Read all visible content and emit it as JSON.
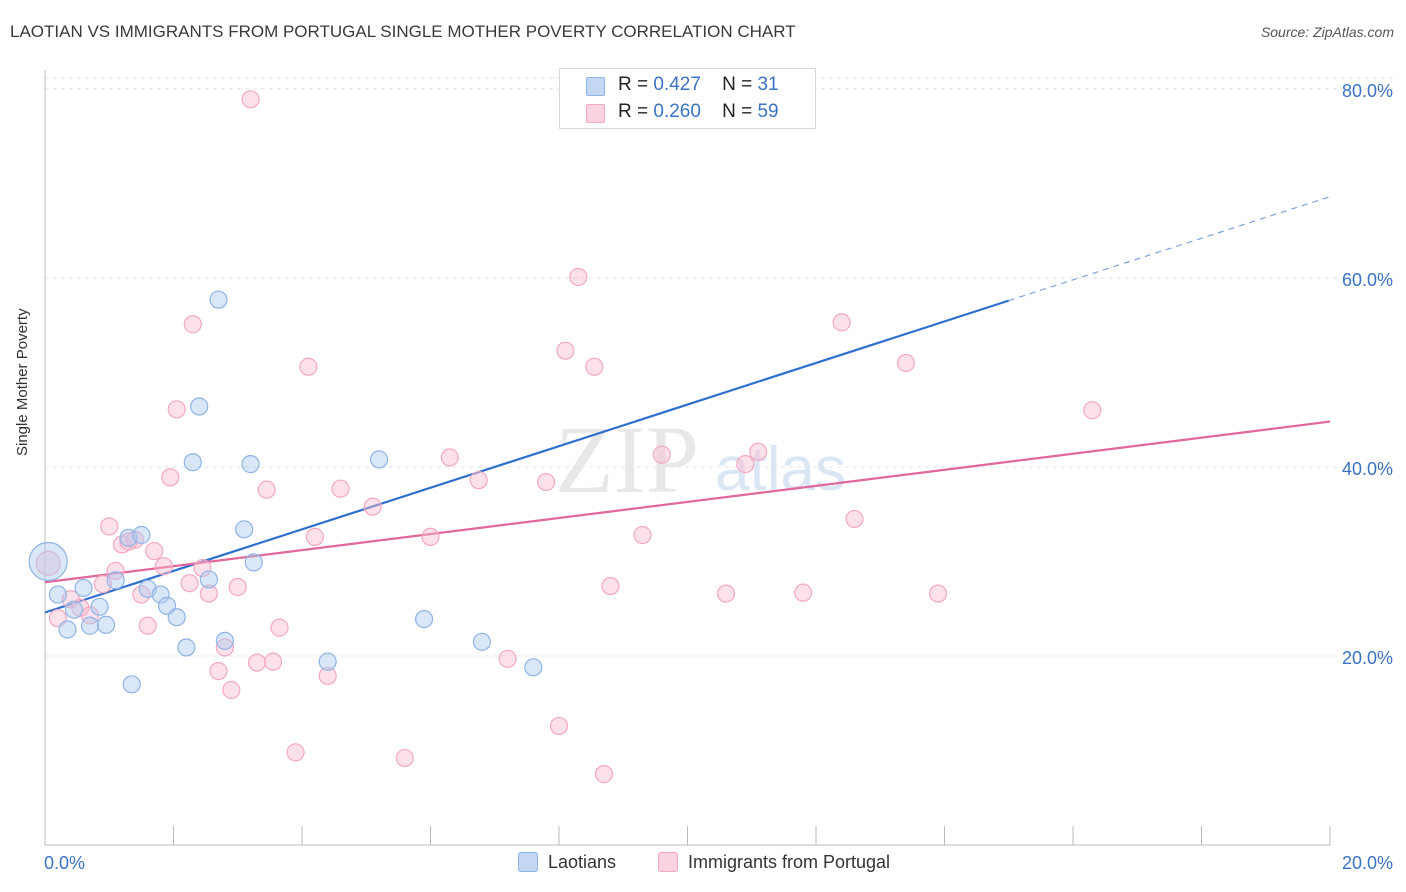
{
  "title": "LAOTIAN VS IMMIGRANTS FROM PORTUGAL SINGLE MOTHER POVERTY CORRELATION CHART",
  "source": "Source: ZipAtlas.com",
  "watermark": {
    "zip": "ZIP",
    "atlas": "atlas"
  },
  "legend_stats": [
    {
      "r_label": "R =",
      "r_value": "0.427",
      "n_label": "N =",
      "n_value": "31"
    },
    {
      "r_label": "R =",
      "r_value": "0.260",
      "n_label": "N =",
      "n_value": "59"
    }
  ],
  "chart_data": {
    "type": "scatter",
    "title": "LAOTIAN VS IMMIGRANTS FROM PORTUGAL SINGLE MOTHER POVERTY CORRELATION CHART",
    "xlabel": "",
    "ylabel": "Single Mother Poverty",
    "xlim": [
      0,
      20
    ],
    "ylim": [
      0,
      82
    ],
    "x_tick_labels": [
      "0.0%",
      "20.0%"
    ],
    "y_ticks": [
      20,
      40,
      60,
      80
    ],
    "y_tick_labels": [
      "20.0%",
      "40.0%",
      "60.0%",
      "80.0%"
    ],
    "grid": true,
    "legend_position": "bottom",
    "series": [
      {
        "name": "Laotians",
        "color": "#8fb4e6",
        "line_color": "#2f6fcf",
        "points": [
          [
            0.05,
            30.0
          ],
          [
            0.2,
            26.5
          ],
          [
            0.35,
            22.8
          ],
          [
            0.45,
            24.9
          ],
          [
            0.6,
            27.2
          ],
          [
            0.7,
            23.2
          ],
          [
            0.85,
            25.2
          ],
          [
            0.95,
            23.3
          ],
          [
            1.1,
            28.0
          ],
          [
            1.3,
            32.5
          ],
          [
            1.5,
            32.8
          ],
          [
            1.6,
            27.1
          ],
          [
            1.8,
            26.5
          ],
          [
            1.9,
            25.3
          ],
          [
            2.05,
            24.1
          ],
          [
            2.2,
            20.9
          ],
          [
            2.3,
            40.5
          ],
          [
            2.4,
            46.4
          ],
          [
            2.55,
            28.1
          ],
          [
            2.7,
            57.7
          ],
          [
            2.8,
            21.6
          ],
          [
            3.1,
            33.4
          ],
          [
            3.2,
            40.3
          ],
          [
            3.25,
            29.9
          ],
          [
            4.4,
            19.4
          ],
          [
            5.2,
            40.8
          ],
          [
            5.9,
            23.9
          ],
          [
            6.8,
            21.5
          ],
          [
            7.6,
            18.8
          ],
          [
            10.5,
            78.0
          ],
          [
            1.35,
            17.0
          ]
        ],
        "trend": {
          "x0": 0,
          "y0": 24.6,
          "x1": 15.0,
          "y1": 57.6,
          "dash_x1": 20.0,
          "dash_y1": 68.6
        }
      },
      {
        "name": "Immigrants from Portugal",
        "color": "#f4a8c2",
        "line_color": "#e0689a",
        "points": [
          [
            0.05,
            29.8
          ],
          [
            0.2,
            24.0
          ],
          [
            0.4,
            26.0
          ],
          [
            0.55,
            25.1
          ],
          [
            0.7,
            24.3
          ],
          [
            0.9,
            27.6
          ],
          [
            1.0,
            33.7
          ],
          [
            1.1,
            29.0
          ],
          [
            1.2,
            31.8
          ],
          [
            1.4,
            32.3
          ],
          [
            1.5,
            26.5
          ],
          [
            1.6,
            23.2
          ],
          [
            1.7,
            31.1
          ],
          [
            1.85,
            29.5
          ],
          [
            1.95,
            38.9
          ],
          [
            2.05,
            46.1
          ],
          [
            2.25,
            27.7
          ],
          [
            2.3,
            55.1
          ],
          [
            2.45,
            29.3
          ],
          [
            2.55,
            26.6
          ],
          [
            2.7,
            18.4
          ],
          [
            2.8,
            20.9
          ],
          [
            2.9,
            16.4
          ],
          [
            3.0,
            27.3
          ],
          [
            3.2,
            78.9
          ],
          [
            3.3,
            19.3
          ],
          [
            3.45,
            37.6
          ],
          [
            3.55,
            19.4
          ],
          [
            3.65,
            23.0
          ],
          [
            3.9,
            9.8
          ],
          [
            4.1,
            50.6
          ],
          [
            4.2,
            32.6
          ],
          [
            4.4,
            17.9
          ],
          [
            4.6,
            37.7
          ],
          [
            5.1,
            35.8
          ],
          [
            5.6,
            9.2
          ],
          [
            6.0,
            32.6
          ],
          [
            6.3,
            41.0
          ],
          [
            6.75,
            38.6
          ],
          [
            7.2,
            19.7
          ],
          [
            7.8,
            38.4
          ],
          [
            8.0,
            12.6
          ],
          [
            8.1,
            52.3
          ],
          [
            8.3,
            60.1
          ],
          [
            8.55,
            50.6
          ],
          [
            8.7,
            7.5
          ],
          [
            8.8,
            27.4
          ],
          [
            9.3,
            32.8
          ],
          [
            9.6,
            41.3
          ],
          [
            10.6,
            26.6
          ],
          [
            10.9,
            40.3
          ],
          [
            11.1,
            41.6
          ],
          [
            11.8,
            26.7
          ],
          [
            12.4,
            55.3
          ],
          [
            12.6,
            34.5
          ],
          [
            13.4,
            51.0
          ],
          [
            13.9,
            26.6
          ],
          [
            16.3,
            46.0
          ],
          [
            1.3,
            32.1
          ]
        ],
        "trend": {
          "x0": 0,
          "y0": 27.8,
          "x1": 20.0,
          "y1": 44.8
        }
      }
    ]
  }
}
